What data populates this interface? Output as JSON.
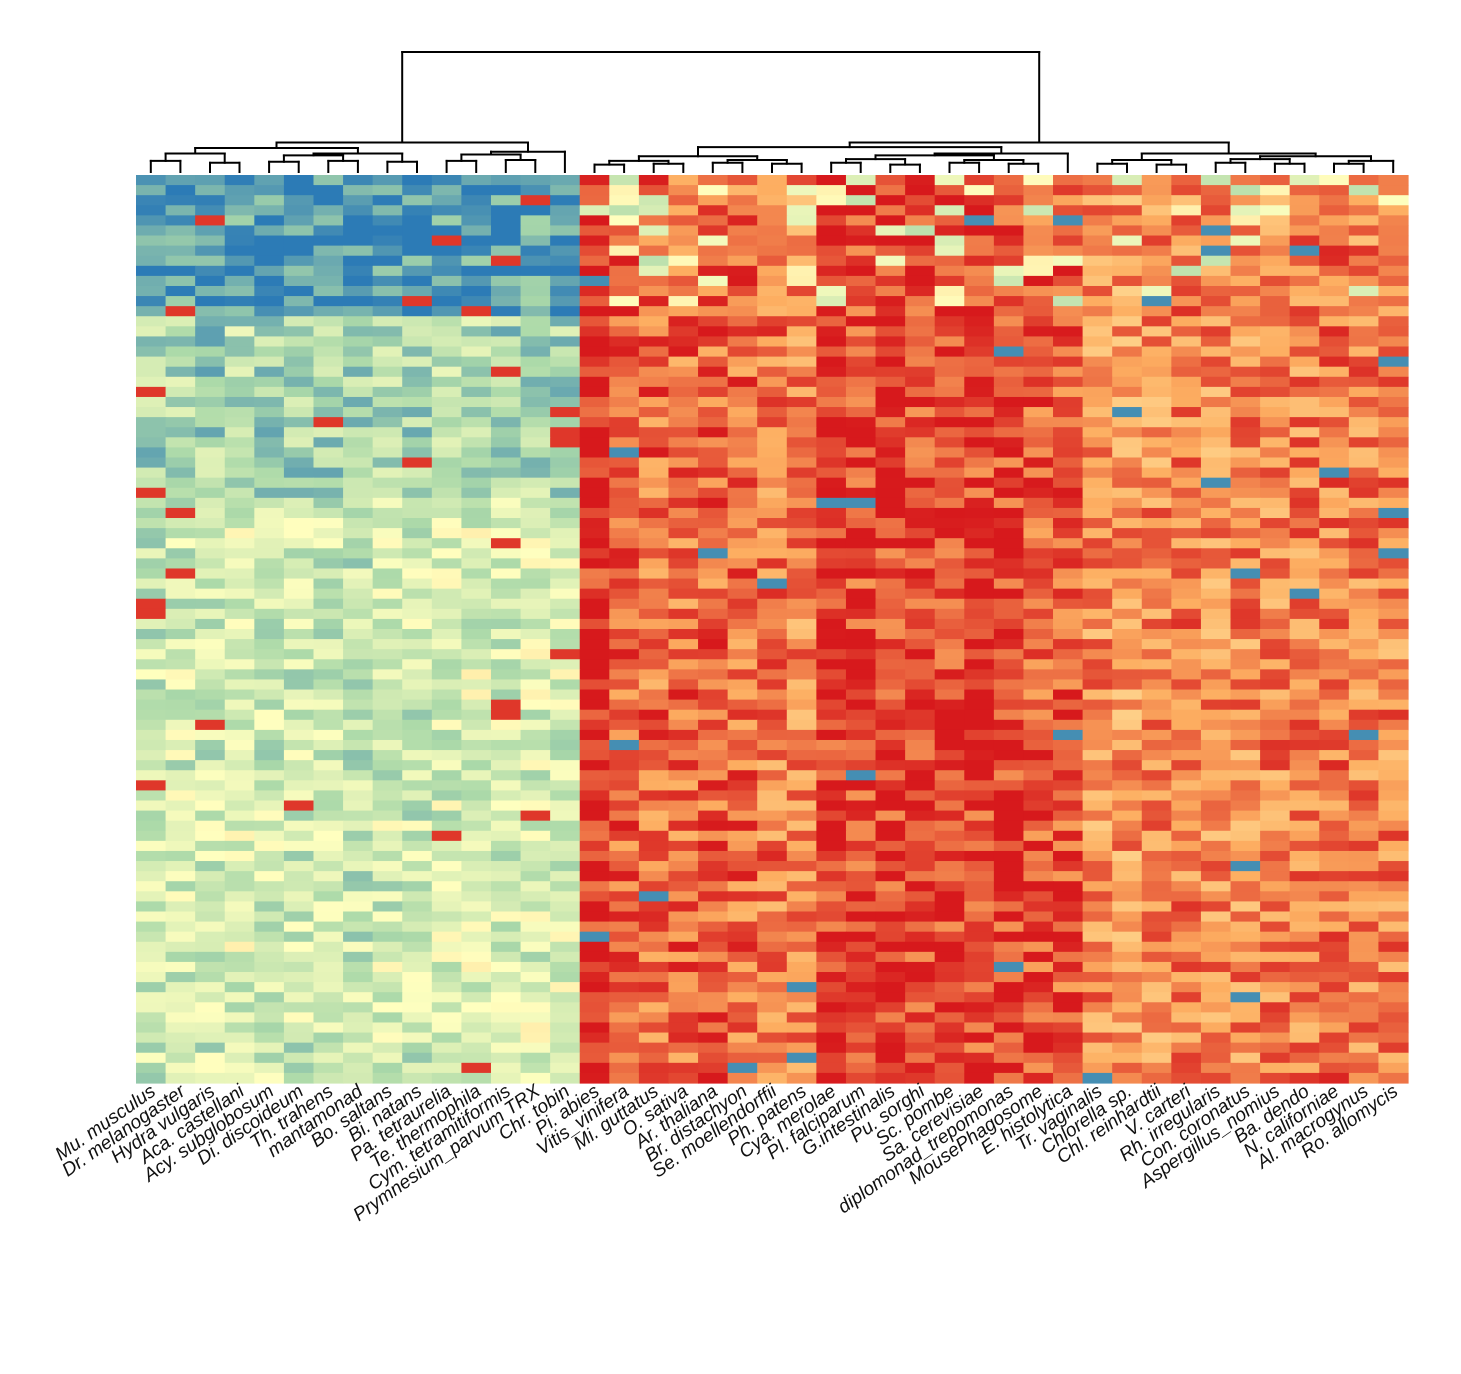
{
  "chart_data": {
    "type": "heatmap",
    "title": "",
    "xlabel": "",
    "ylabel": "",
    "columns": [
      "Mu. musculus",
      "Dr. melanogaster",
      "Hydra vulgaris",
      "Aca. castellani",
      "Acy. subglobosum",
      "Di. discoideum",
      "Th. trahens",
      "mantamonad",
      "Bo. saltans",
      "Bi. natans",
      "Pa. tetraurelia",
      "Te. thermophila",
      "Cym. tetramitiformis",
      "Prymnesium_parvum TRX",
      "Chr. tobin",
      "Pi. abies",
      "Vitis_vinifera",
      "Mi. guttatus",
      "O. sativa",
      "Ar. thaliana",
      "Br. distachyon",
      "Se. moellendorffii",
      "Ph. patens",
      "Cya. merolae",
      "Pl. falciparum",
      "G.intestinalis",
      "Pu. sorghi",
      "Sc. pombe",
      "Sa. cerevisiae",
      "diplomonad_trepomonas",
      "MousePhagosome",
      "E. histolytica",
      "Tr. vaginalis",
      "Chlorella sp.",
      "Chl. reinhardtii",
      "V. carteri",
      "Rh. irregularis",
      "Con. coronatus",
      "Aspergillus_nomius",
      "Ba. dendo",
      "N. californiae",
      "Al. macrogynus",
      "Ro. allomycis"
    ],
    "n_rows": 90,
    "color_scale": [
      "#2c7bb6",
      "#abd9a9",
      "#ffffbf",
      "#fdae61",
      "#d7191c"
    ],
    "value_range": [
      0,
      1
    ],
    "column_clusters": {
      "blue_block": [
        "Mu. musculus",
        "Dr. melanogaster",
        "Hydra vulgaris",
        "Aca. castellani",
        "Acy. subglobosum",
        "Di. discoideum",
        "Th. trahens",
        "mantamonad",
        "Bo. saltans",
        "Bi. natans",
        "Pa. tetraurelia",
        "Te. thermophila",
        "Cym. tetramitiformis",
        "Prymnesium_parvum TRX",
        "Chr. tobin"
      ],
      "red_block": [
        "Pi. abies",
        "Vitis_vinifera",
        "Mi. guttatus",
        "O. sativa",
        "Ar. thaliana",
        "Br. distachyon",
        "Se. moellendorffii",
        "Ph. patens",
        "Cya. merolae",
        "Pl. falciparum",
        "G.intestinalis",
        "Pu. sorghi",
        "Sc. pombe",
        "Sa. cerevisiae",
        "diplomonad_trepomonas",
        "MousePhagosome",
        "E. histolytica",
        "Tr. vaginalis",
        "Chlorella sp.",
        "Chl. reinhardtii",
        "V. carteri",
        "Rh. irregularis",
        "Con. coronatus",
        "Aspergillus_nomius",
        "Ba. dendo",
        "N. californiae",
        "Al. macrogynus",
        "Ro. allomycis"
      ]
    },
    "column_mean_levels": [
      0.3,
      0.32,
      0.3,
      0.34,
      0.31,
      0.3,
      0.31,
      0.28,
      0.32,
      0.31,
      0.33,
      0.34,
      0.31,
      0.34,
      0.33,
      0.97,
      0.88,
      0.86,
      0.86,
      0.87,
      0.86,
      0.84,
      0.82,
      0.95,
      0.92,
      0.93,
      0.92,
      0.93,
      0.92,
      0.92,
      0.9,
      0.9,
      0.8,
      0.78,
      0.8,
      0.83,
      0.8,
      0.81,
      0.82,
      0.82,
      0.84,
      0.82,
      0.82
    ],
    "dendrogram": {
      "merges": [
        [
          0,
          1,
          0.12
        ],
        [
          2,
          3,
          0.1
        ],
        [
          -1,
          -2,
          0.2
        ],
        [
          4,
          5,
          0.11
        ],
        [
          6,
          7,
          0.12
        ],
        [
          -4,
          -5,
          0.18
        ],
        [
          8,
          9,
          0.11
        ],
        [
          -6,
          -7,
          0.2
        ],
        [
          -3,
          -8,
          0.26
        ],
        [
          10,
          11,
          0.12
        ],
        [
          12,
          13,
          0.13
        ],
        [
          -10,
          -11,
          0.19
        ],
        [
          14,
          -12,
          0.22
        ],
        [
          -9,
          -13,
          0.32
        ],
        [
          15,
          16,
          0.08
        ],
        [
          17,
          18,
          0.09
        ],
        [
          -15,
          -16,
          0.12
        ],
        [
          19,
          20,
          0.1
        ],
        [
          21,
          22,
          0.09
        ],
        [
          -18,
          -19,
          0.13
        ],
        [
          -17,
          -20,
          0.17
        ],
        [
          23,
          24,
          0.1
        ],
        [
          25,
          26,
          0.08
        ],
        [
          -22,
          -23,
          0.14
        ],
        [
          27,
          28,
          0.1
        ],
        [
          29,
          30,
          0.09
        ],
        [
          -25,
          -26,
          0.13
        ],
        [
          -24,
          -27,
          0.18
        ],
        [
          31,
          -28,
          0.2
        ],
        [
          -21,
          -29,
          0.27
        ],
        [
          32,
          33,
          0.09
        ],
        [
          34,
          35,
          0.08
        ],
        [
          -31,
          -32,
          0.13
        ],
        [
          36,
          37,
          0.1
        ],
        [
          38,
          39,
          0.09
        ],
        [
          -34,
          -35,
          0.14
        ],
        [
          40,
          41,
          0.09
        ],
        [
          -37,
          42,
          0.12
        ],
        [
          -36,
          -38,
          0.17
        ],
        [
          -33,
          -39,
          0.2
        ],
        [
          -30,
          -40,
          0.32
        ],
        [
          -14,
          -41,
          1.3
        ]
      ]
    }
  }
}
